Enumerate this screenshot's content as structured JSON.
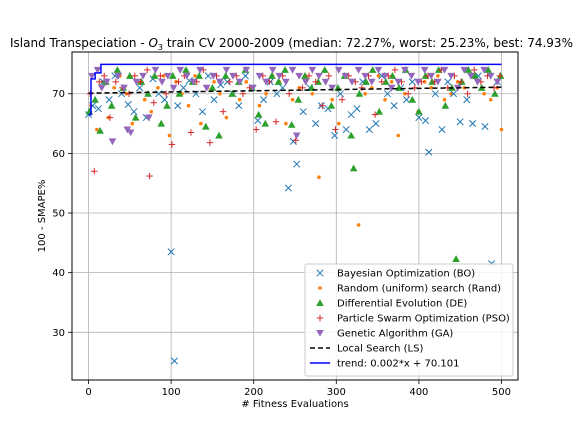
{
  "chart_data": {
    "type": "scatter",
    "title_parts": [
      "Island Transpeciation - ",
      "O",
      "3",
      " train CV 2000-2009 (median: 72.27%, worst: 25.23%, best: 74.93%"
    ],
    "xlabel": "# Fitness Evaluations",
    "ylabel": "100 - SMAPE%",
    "xlim": [
      -20,
      520
    ],
    "ylim": [
      22,
      77
    ],
    "xticks": [
      0,
      100,
      200,
      300,
      400,
      500
    ],
    "yticks": [
      30,
      40,
      50,
      60,
      70
    ],
    "grid": true,
    "legend_position": "lower-right",
    "series": [
      {
        "name": "Bayesian Optimization (BO)",
        "marker": "x",
        "color": "#1f77b4",
        "x": [
          0,
          5,
          12,
          18,
          25,
          32,
          40,
          48,
          55,
          62,
          70,
          78,
          85,
          92,
          100,
          104,
          108,
          115,
          122,
          130,
          138,
          145,
          152,
          160,
          168,
          175,
          182,
          190,
          198,
          205,
          212,
          220,
          228,
          235,
          242,
          248,
          252,
          260,
          268,
          275,
          282,
          290,
          298,
          305,
          312,
          318,
          325,
          332,
          340,
          348,
          355,
          362,
          370,
          378,
          385,
          392,
          400,
          408,
          412,
          420,
          428,
          435,
          442,
          450,
          458,
          465,
          472,
          480,
          488,
          495
        ],
        "y": [
          66.5,
          68,
          67.5,
          72,
          69,
          73,
          70,
          68.2,
          67,
          71,
          66,
          72.5,
          70,
          69,
          43.5,
          25.2,
          68,
          71,
          72.2,
          70,
          67,
          73,
          69,
          71.5,
          72,
          70,
          68,
          73,
          71,
          65.5,
          69,
          72,
          70,
          71,
          54.2,
          62,
          58.2,
          67,
          71,
          65,
          68,
          67.5,
          63,
          70,
          64,
          66.5,
          67.5,
          72,
          64,
          65,
          73,
          70,
          68,
          71,
          69,
          72,
          66,
          65.5,
          60.2,
          70,
          64,
          72,
          70,
          65.3,
          69,
          65,
          73,
          64.5,
          41.5,
          72
        ]
      },
      {
        "name": "Random (uniform) search (Rand)",
        "marker": "o",
        "color": "#ff7f0e",
        "x": [
          3,
          10,
          17,
          24,
          31,
          38,
          46,
          53,
          60,
          68,
          76,
          84,
          91,
          98,
          106,
          113,
          121,
          129,
          136,
          144,
          152,
          159,
          167,
          175,
          183,
          191,
          199,
          207,
          215,
          223,
          231,
          239,
          247,
          255,
          263,
          271,
          279,
          287,
          295,
          303,
          311,
          319,
          327,
          335,
          343,
          351,
          359,
          367,
          375,
          383,
          391,
          399,
          407,
          415,
          423,
          431,
          439,
          447,
          455,
          463,
          471,
          479,
          487,
          495,
          500
        ],
        "y": [
          68,
          64,
          72,
          66,
          71,
          73,
          70,
          65,
          72,
          69,
          67,
          71,
          73,
          63,
          72,
          70,
          68,
          73,
          65,
          71,
          72,
          70,
          66,
          73,
          69,
          72,
          71,
          68,
          70,
          73,
          72,
          65,
          69,
          71,
          73,
          70,
          56,
          72,
          69,
          65,
          73,
          72,
          48,
          70,
          71,
          73,
          69,
          72,
          63,
          70,
          73,
          67,
          72,
          71,
          73,
          69,
          70,
          72,
          71,
          73,
          72,
          70,
          69,
          71,
          64
        ]
      },
      {
        "name": "Differential Evolution (DE)",
        "marker": "^",
        "color": "#2ca02c",
        "x": [
          1,
          8,
          14,
          21,
          28,
          35,
          42,
          50,
          57,
          64,
          72,
          80,
          88,
          95,
          102,
          110,
          118,
          126,
          134,
          142,
          150,
          158,
          166,
          174,
          182,
          190,
          198,
          206,
          214,
          222,
          230,
          238,
          246,
          254,
          262,
          270,
          278,
          286,
          294,
          302,
          310,
          318,
          321,
          328,
          336,
          344,
          352,
          360,
          368,
          376,
          384,
          392,
          400,
          408,
          416,
          424,
          432,
          440,
          445,
          452,
          460,
          468,
          476,
          484,
          492,
          499
        ],
        "y": [
          67,
          69,
          63.8,
          72,
          68,
          74,
          71,
          73,
          66,
          72,
          70,
          73,
          65,
          68,
          73,
          70,
          74,
          72,
          73,
          64.5,
          71,
          63,
          73,
          70,
          72,
          74,
          71,
          66.5,
          65,
          73,
          72,
          74,
          64.8,
          69,
          73,
          71,
          72,
          74,
          68,
          71,
          73,
          63,
          57.5,
          70,
          72,
          74,
          67,
          72,
          73,
          71,
          74,
          69,
          67,
          73,
          72,
          74,
          68,
          71,
          42.3,
          72,
          74,
          73,
          71,
          74,
          70,
          73
        ]
      },
      {
        "name": "Particle Swarm Optimization (PSO)",
        "marker": "+",
        "color": "#d62728",
        "x": [
          2,
          7,
          13,
          19,
          26,
          33,
          41,
          49,
          56,
          63,
          71,
          74,
          79,
          87,
          94,
          101,
          109,
          116,
          124,
          131,
          139,
          147,
          155,
          163,
          171,
          179,
          187,
          195,
          203,
          211,
          219,
          227,
          235,
          243,
          251,
          259,
          267,
          275,
          283,
          291,
          299,
          307,
          315,
          323,
          331,
          339,
          347,
          355,
          363,
          371,
          379,
          387,
          395,
          403,
          411,
          419,
          427,
          435,
          443,
          451,
          459,
          467,
          475,
          483,
          491,
          498
        ],
        "y": [
          70,
          57,
          72,
          73,
          66,
          72,
          71,
          70,
          73,
          72,
          74,
          56.2,
          68.5,
          73,
          70,
          61.5,
          72,
          73,
          63.5,
          72,
          74,
          61.8,
          73,
          67,
          72,
          73,
          70,
          71,
          64,
          73,
          72,
          65.3,
          73,
          70,
          62.2,
          71,
          73,
          72,
          68,
          73,
          64,
          69,
          73,
          72,
          71,
          73,
          66.5,
          72,
          73,
          74,
          72,
          70,
          71,
          72,
          73,
          72,
          74,
          71,
          73,
          72,
          70,
          74,
          72,
          73,
          71,
          73
        ]
      },
      {
        "name": "Genetic Algorithm (GA)",
        "marker": "v",
        "color": "#9467bd",
        "x": [
          4,
          11,
          16,
          22,
          29,
          36,
          43,
          47,
          51,
          58,
          66,
          73,
          81,
          89,
          96,
          103,
          111,
          119,
          127,
          135,
          143,
          151,
          159,
          167,
          175,
          183,
          191,
          199,
          207,
          215,
          223,
          231,
          239,
          247,
          252,
          255,
          263,
          271,
          279,
          287,
          295,
          303,
          311,
          319,
          327,
          335,
          343,
          351,
          359,
          367,
          375,
          383,
          391,
          399,
          407,
          415,
          423,
          431,
          439,
          447,
          455,
          463,
          471,
          479,
          487,
          495
        ],
        "y": [
          73,
          74,
          71,
          72,
          62,
          73,
          71,
          64,
          63.5,
          72,
          73,
          66,
          74,
          72,
          73,
          71,
          74,
          73,
          72,
          74,
          71,
          73,
          72,
          74,
          73,
          72,
          74,
          71,
          73,
          72,
          74,
          73,
          72,
          74,
          63,
          73,
          72,
          74,
          73,
          72,
          71,
          74,
          73,
          72,
          74,
          73,
          72,
          74,
          73,
          71,
          72,
          74,
          73,
          72,
          74,
          73,
          72,
          74,
          73,
          71,
          74,
          73,
          72,
          74,
          73,
          72
        ]
      },
      {
        "name": "Local Search (LS)",
        "marker": "line",
        "style": "dashed",
        "color": "#000000",
        "x": [
          0,
          500
        ],
        "y": [
          70.1,
          71.1
        ]
      },
      {
        "name": "trend: 0.002*x + 70.101",
        "marker": "line",
        "style": "solid",
        "color": "#0000ff",
        "x": [
          0,
          3,
          3,
          8,
          8,
          15,
          15,
          500
        ],
        "y": [
          66.5,
          66.5,
          72.5,
          72.5,
          73.5,
          73.5,
          74.93,
          74.93
        ]
      }
    ]
  }
}
